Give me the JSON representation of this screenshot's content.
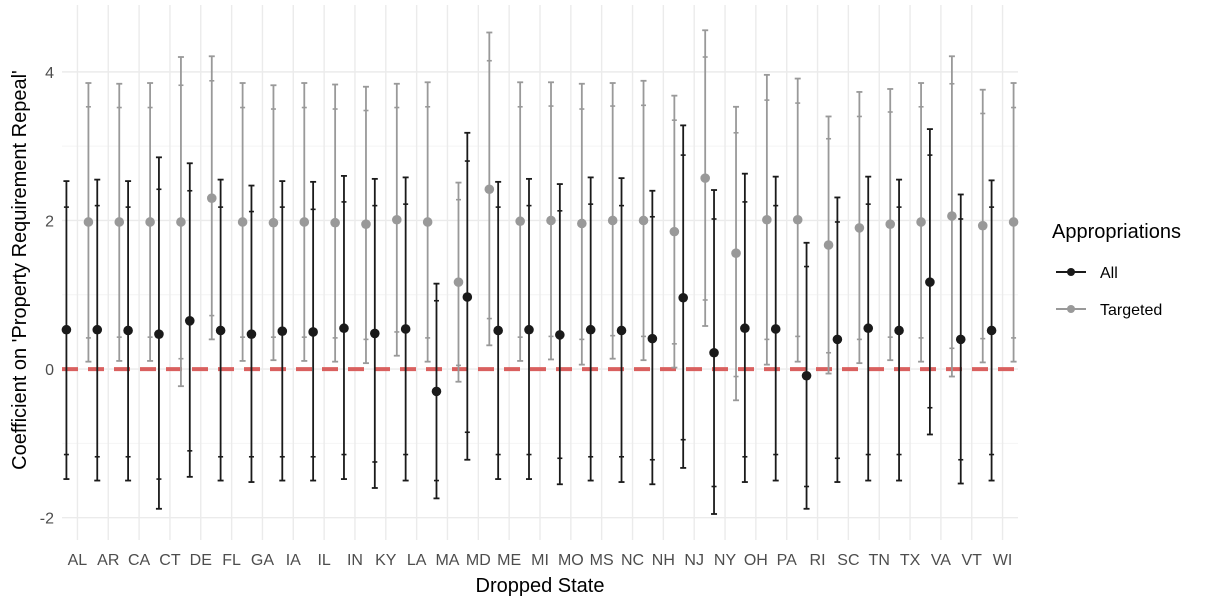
{
  "chart_data": {
    "type": "scatter",
    "title": "",
    "xlabel": "Dropped State",
    "ylabel": "Coefficient on 'Property Requirement Repeal'",
    "ylim": [
      -2.3,
      4.9
    ],
    "y_ticks": [
      -2,
      0,
      2,
      4
    ],
    "y_tick_labels": [
      "-2",
      "0",
      "2",
      "4"
    ],
    "grid": true,
    "reference_line": {
      "y": 0,
      "style": "dashed",
      "color": "#d9605f"
    },
    "legend": {
      "title": "Appropriations",
      "position": "right"
    },
    "categories": [
      "AL",
      "AR",
      "CA",
      "CT",
      "DE",
      "FL",
      "GA",
      "IA",
      "IL",
      "IN",
      "KY",
      "LA",
      "MA",
      "MD",
      "ME",
      "MI",
      "MO",
      "MS",
      "NC",
      "NH",
      "NJ",
      "NY",
      "OH",
      "PA",
      "RI",
      "SC",
      "TN",
      "TX",
      "VA",
      "VT",
      "WI"
    ],
    "series": [
      {
        "name": "All",
        "color": "#1a1a1a",
        "estimate": [
          0.53,
          0.53,
          0.52,
          0.47,
          0.65,
          0.52,
          0.47,
          0.51,
          0.5,
          0.55,
          0.48,
          0.54,
          -0.3,
          0.97,
          0.52,
          0.53,
          0.46,
          0.53,
          0.52,
          0.41,
          0.96,
          0.22,
          0.55,
          0.54,
          -0.09,
          0.4,
          0.55,
          0.52,
          1.17,
          0.4,
          0.52
        ],
        "ci_inner_low": [
          -1.15,
          -1.18,
          -1.18,
          -1.48,
          -1.1,
          -1.18,
          -1.18,
          -1.18,
          -1.18,
          -1.15,
          -1.25,
          -1.15,
          -1.5,
          -0.85,
          -1.15,
          -1.15,
          -1.2,
          -1.18,
          -1.18,
          -1.22,
          -0.95,
          -1.58,
          -1.18,
          -1.15,
          -1.58,
          -1.2,
          -1.15,
          -1.15,
          -0.52,
          -1.22,
          -1.15
        ],
        "ci_inner_high": [
          2.18,
          2.2,
          2.18,
          2.42,
          2.4,
          2.18,
          2.12,
          2.18,
          2.15,
          2.25,
          2.2,
          2.22,
          0.92,
          2.8,
          2.18,
          2.2,
          2.13,
          2.22,
          2.2,
          2.05,
          2.88,
          2.02,
          2.25,
          2.2,
          1.38,
          1.98,
          2.22,
          2.18,
          2.88,
          2.02,
          2.18
        ],
        "ci_outer_low": [
          -1.48,
          -1.5,
          -1.5,
          -1.88,
          -1.45,
          -1.5,
          -1.52,
          -1.5,
          -1.5,
          -1.48,
          -1.6,
          -1.5,
          -1.74,
          -1.22,
          -1.48,
          -1.48,
          -1.55,
          -1.5,
          -1.52,
          -1.55,
          -1.33,
          -1.95,
          -1.52,
          -1.5,
          -1.88,
          -1.52,
          -1.5,
          -1.5,
          -0.88,
          -1.54,
          -1.5
        ],
        "ci_outer_high": [
          2.53,
          2.55,
          2.53,
          2.85,
          2.77,
          2.55,
          2.47,
          2.53,
          2.52,
          2.6,
          2.56,
          2.58,
          1.15,
          3.18,
          2.52,
          2.56,
          2.49,
          2.58,
          2.57,
          2.4,
          3.28,
          2.41,
          2.63,
          2.59,
          1.7,
          2.31,
          2.59,
          2.55,
          3.23,
          2.35,
          2.54
        ]
      },
      {
        "name": "Targeted",
        "color": "#999999",
        "estimate": [
          1.98,
          1.98,
          1.98,
          1.98,
          2.3,
          1.98,
          1.97,
          1.98,
          1.97,
          1.95,
          2.01,
          1.98,
          1.17,
          2.42,
          1.99,
          2.0,
          1.96,
          2.0,
          2.0,
          1.85,
          2.57,
          1.56,
          2.01,
          2.01,
          1.67,
          1.9,
          1.95,
          1.98,
          2.06,
          1.93,
          1.98
        ],
        "ci_inner_low": [
          0.42,
          0.43,
          0.43,
          0.14,
          0.72,
          0.43,
          0.43,
          0.43,
          0.42,
          0.4,
          0.5,
          0.42,
          0.05,
          0.68,
          0.43,
          0.44,
          0.4,
          0.45,
          0.44,
          0.34,
          0.93,
          -0.1,
          0.4,
          0.44,
          0.22,
          0.4,
          0.43,
          0.42,
          0.28,
          0.41,
          0.42
        ],
        "ci_inner_high": [
          3.53,
          3.52,
          3.52,
          3.82,
          3.88,
          3.52,
          3.5,
          3.52,
          3.5,
          3.48,
          3.52,
          3.53,
          2.28,
          4.15,
          3.53,
          3.54,
          3.5,
          3.54,
          3.55,
          3.35,
          4.2,
          3.18,
          3.62,
          3.58,
          3.1,
          3.4,
          3.46,
          3.53,
          3.84,
          3.44,
          3.52
        ],
        "ci_outer_low": [
          0.1,
          0.11,
          0.11,
          -0.23,
          0.4,
          0.11,
          0.12,
          0.11,
          0.1,
          0.08,
          0.18,
          0.1,
          -0.17,
          0.32,
          0.11,
          0.13,
          0.06,
          0.14,
          0.12,
          0.02,
          0.58,
          -0.42,
          0.06,
          0.1,
          -0.06,
          0.08,
          0.12,
          0.1,
          -0.1,
          0.09,
          0.1
        ],
        "ci_outer_high": [
          3.85,
          3.84,
          3.85,
          4.2,
          4.21,
          3.85,
          3.82,
          3.85,
          3.83,
          3.8,
          3.84,
          3.86,
          2.51,
          4.53,
          3.86,
          3.86,
          3.84,
          3.85,
          3.88,
          3.68,
          4.56,
          3.53,
          3.96,
          3.91,
          3.4,
          3.73,
          3.77,
          3.85,
          4.21,
          3.76,
          3.85
        ]
      }
    ]
  }
}
